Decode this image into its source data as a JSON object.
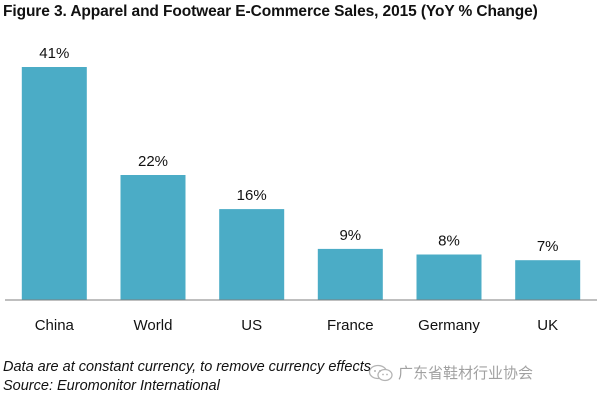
{
  "chart_data": {
    "type": "bar",
    "title": "Figure 3. Apparel and Footwear E-Commerce Sales, 2015 (YoY % Change)",
    "categories": [
      "China",
      "World",
      "US",
      "France",
      "Germany",
      "UK"
    ],
    "values": [
      41,
      22,
      16,
      9,
      8,
      7
    ],
    "value_labels": [
      "41%",
      "22%",
      "16%",
      "9%",
      "8%",
      "7%"
    ],
    "xlabel": "",
    "ylabel": "",
    "ylim": [
      0,
      41
    ],
    "grid": false,
    "legend": "none",
    "bar_color": "#4bacc6",
    "axis_color": "#7f7f7f"
  },
  "notes": {
    "line1": "Data are at constant currency, to remove currency effects",
    "line2": "Source: Euromonitor International"
  },
  "watermark": {
    "text": "广东省鞋材行业协会",
    "icon": "wechat-logo-icon"
  }
}
